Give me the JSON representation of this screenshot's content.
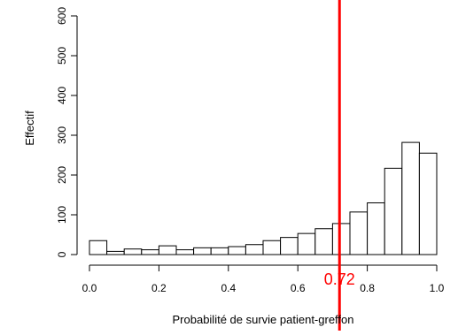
{
  "chart_data": {
    "type": "bar",
    "subtype": "histogram",
    "xlabel": "Probabilité de survie patient-greffon",
    "ylabel": "Effectif",
    "xlim": [
      0,
      1
    ],
    "ylim": [
      0,
      600
    ],
    "x_ticks": [
      "0.0",
      "0.2",
      "0.4",
      "0.6",
      "0.8",
      "1.0"
    ],
    "y_ticks": [
      "0",
      "100",
      "200",
      "300",
      "400",
      "500",
      "600"
    ],
    "bin_width": 0.05,
    "bins": [
      {
        "x0": 0.0,
        "x1": 0.05,
        "count": 35
      },
      {
        "x0": 0.05,
        "x1": 0.1,
        "count": 8
      },
      {
        "x0": 0.1,
        "x1": 0.15,
        "count": 14
      },
      {
        "x0": 0.15,
        "x1": 0.2,
        "count": 12
      },
      {
        "x0": 0.2,
        "x1": 0.25,
        "count": 22
      },
      {
        "x0": 0.25,
        "x1": 0.3,
        "count": 12
      },
      {
        "x0": 0.3,
        "x1": 0.35,
        "count": 17
      },
      {
        "x0": 0.35,
        "x1": 0.4,
        "count": 17
      },
      {
        "x0": 0.4,
        "x1": 0.45,
        "count": 20
      },
      {
        "x0": 0.45,
        "x1": 0.5,
        "count": 25
      },
      {
        "x0": 0.5,
        "x1": 0.55,
        "count": 35
      },
      {
        "x0": 0.55,
        "x1": 0.6,
        "count": 43
      },
      {
        "x0": 0.6,
        "x1": 0.65,
        "count": 53
      },
      {
        "x0": 0.65,
        "x1": 0.7,
        "count": 65
      },
      {
        "x0": 0.7,
        "x1": 0.75,
        "count": 78
      },
      {
        "x0": 0.75,
        "x1": 0.8,
        "count": 107
      },
      {
        "x0": 0.8,
        "x1": 0.85,
        "count": 130
      },
      {
        "x0": 0.85,
        "x1": 0.9,
        "count": 217
      },
      {
        "x0": 0.9,
        "x1": 0.95,
        "count": 282
      },
      {
        "x0": 0.95,
        "x1": 1.0,
        "count": 255
      }
    ],
    "reference_line": {
      "x": 0.72,
      "label": "0.72",
      "color": "#ff0000"
    },
    "bar_fill": "#ffffff",
    "bar_stroke": "#000000",
    "grid": false
  }
}
